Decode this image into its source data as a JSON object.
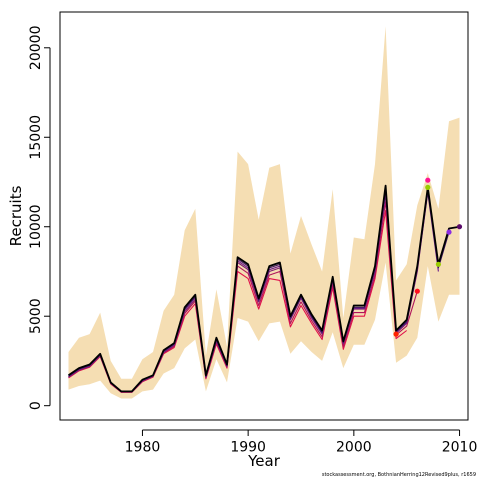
{
  "chart_data": {
    "type": "line",
    "xlabel": "Year",
    "ylabel": "Recruits",
    "xlim": [
      1972.2,
      2010.8
    ],
    "ylim": [
      -800,
      22000
    ],
    "xticks": [
      1980,
      1990,
      2000,
      2010
    ],
    "yticks": [
      0,
      5000,
      10000,
      15000,
      20000
    ],
    "grid": false,
    "footnote": "stockassessment.org, BothnianHerring12Revised9plus, r1659",
    "band": {
      "color": "#f5deb3",
      "x": [
        1973,
        1974,
        1975,
        1976,
        1977,
        1978,
        1979,
        1980,
        1981,
        1982,
        1983,
        1984,
        1985,
        1986,
        1987,
        1988,
        1989,
        1990,
        1991,
        1992,
        1993,
        1994,
        1995,
        1996,
        1997,
        1998,
        1999,
        2000,
        2001,
        2002,
        2003,
        2004,
        2005,
        2006,
        2007,
        2008,
        2009,
        2010
      ],
      "upper": [
        3000,
        3800,
        4000,
        5200,
        2500,
        1500,
        1500,
        2600,
        3000,
        5300,
        6200,
        9800,
        11000,
        2800,
        6500,
        3300,
        14200,
        13500,
        10400,
        13300,
        13500,
        8500,
        10600,
        9000,
        7500,
        12100,
        4900,
        9400,
        9300,
        13500,
        21200,
        7000,
        7900,
        11200,
        13000,
        11000,
        15900,
        16100
      ],
      "lower": [
        900,
        1100,
        1200,
        1400,
        700,
        400,
        400,
        800,
        900,
        1800,
        2100,
        3200,
        3700,
        800,
        2600,
        1300,
        4900,
        4700,
        3600,
        4600,
        4700,
        2900,
        3600,
        3000,
        2500,
        4100,
        2100,
        3400,
        3400,
        4800,
        8000,
        2400,
        2800,
        3800,
        7800,
        4700,
        6200,
        6200
      ]
    },
    "series": [
      {
        "color": "#000000",
        "x": [
          1973,
          1974,
          1975,
          1976,
          1977,
          1978,
          1979,
          1980,
          1981,
          1982,
          1983,
          1984,
          1985,
          1986,
          1987,
          1988,
          1989,
          1990,
          1991,
          1992,
          1993,
          1994,
          1995,
          1996,
          1997,
          1998,
          1999,
          2000,
          2001,
          2002,
          2003,
          2004,
          2005,
          2006,
          2007,
          2008,
          2009,
          2010
        ],
        "y": [
          1700,
          2100,
          2300,
          2900,
          1300,
          800,
          800,
          1450,
          1700,
          3100,
          3500,
          5500,
          6200,
          1700,
          3800,
          2300,
          8300,
          7900,
          6000,
          7800,
          8000,
          5000,
          6200,
          5100,
          4200,
          7200,
          3600,
          5600,
          5600,
          7800,
          12300,
          4200,
          4800,
          7800,
          12200,
          7900,
          9900,
          10000
        ]
      },
      {
        "color": "#3d1660",
        "x": [
          1973,
          1974,
          1975,
          1976,
          1977,
          1978,
          1979,
          1980,
          1981,
          1982,
          1983,
          1984,
          1985,
          1986,
          1987,
          1988,
          1989,
          1990,
          1991,
          1992,
          1993,
          1994,
          1995,
          1996,
          1997,
          1998,
          1999,
          2000,
          2001,
          2002,
          2003,
          2004,
          2005,
          2006,
          2007,
          2008,
          2009
        ],
        "y": [
          1650,
          2050,
          2250,
          2850,
          1280,
          790,
          790,
          1420,
          1680,
          3050,
          3450,
          5400,
          6100,
          1650,
          3700,
          2250,
          8200,
          7800,
          5900,
          7700,
          7900,
          4900,
          6100,
          5000,
          4100,
          7100,
          3550,
          5500,
          5500,
          7700,
          12100,
          4150,
          4700,
          7700,
          12000,
          7700,
          9700
        ]
      },
      {
        "color": "#6b1a8c",
        "x": [
          1973,
          1974,
          1975,
          1976,
          1977,
          1978,
          1979,
          1980,
          1981,
          1982,
          1983,
          1984,
          1985,
          1986,
          1987,
          1988,
          1989,
          1990,
          1991,
          1992,
          1993,
          1994,
          1995,
          1996,
          1997,
          1998,
          1999,
          2000,
          2001,
          2002,
          2003,
          2004,
          2005,
          2006,
          2007,
          2008
        ],
        "y": [
          1630,
          2030,
          2230,
          2830,
          1270,
          780,
          780,
          1400,
          1660,
          3020,
          3420,
          5350,
          6050,
          1620,
          3660,
          2220,
          8100,
          7700,
          5850,
          7600,
          7800,
          4850,
          6050,
          4950,
          4050,
          7050,
          3500,
          5450,
          5450,
          7600,
          11900,
          4100,
          4650,
          7600,
          11900,
          7500
        ]
      },
      {
        "color": "#7a1f6e",
        "x": [
          1973,
          1974,
          1975,
          1976,
          1977,
          1978,
          1979,
          1980,
          1981,
          1982,
          1983,
          1984,
          1985,
          1986,
          1987,
          1988,
          1989,
          1990,
          1991,
          1992,
          1993,
          1994,
          1995,
          1996,
          1997,
          1998,
          1999,
          2000,
          2001,
          2002,
          2003,
          2004,
          2005,
          2006,
          2007
        ],
        "y": [
          1600,
          2000,
          2200,
          2800,
          1260,
          770,
          770,
          1380,
          1640,
          2980,
          3380,
          5250,
          5950,
          1600,
          3600,
          2200,
          8000,
          7600,
          5800,
          7500,
          7700,
          4800,
          6000,
          4900,
          4000,
          7000,
          3450,
          5400,
          5400,
          7500,
          11800,
          4050,
          4600,
          7500,
          12000
        ]
      },
      {
        "color": "#b0145a",
        "x": [
          1973,
          1974,
          1975,
          1976,
          1977,
          1978,
          1979,
          1980,
          1981,
          1982,
          1983,
          1984,
          1985,
          1986,
          1987,
          1988,
          1989,
          1990,
          1991,
          1992,
          1993,
          1994,
          1995,
          1996,
          1997,
          1998,
          1999,
          2000,
          2001,
          2002,
          2003,
          2004,
          2005,
          2006
        ],
        "y": [
          1580,
          1980,
          2180,
          2780,
          1240,
          760,
          760,
          1360,
          1620,
          2950,
          3320,
          5150,
          5850,
          1560,
          3550,
          2150,
          7800,
          7400,
          5600,
          7300,
          7500,
          4600,
          5800,
          4750,
          3850,
          6800,
          3300,
          5200,
          5200,
          7300,
          11400,
          3950,
          4450,
          6400
        ]
      },
      {
        "color": "#e0114a",
        "x": [
          1973,
          1974,
          1975,
          1976,
          1977,
          1978,
          1979,
          1980,
          1981,
          1982,
          1983,
          1984,
          1985,
          1986,
          1987,
          1988,
          1989,
          1990,
          1991,
          1992,
          1993,
          1994,
          1995,
          1996,
          1997,
          1998,
          1999,
          2000,
          2001,
          2002,
          2003,
          2004,
          2005
        ],
        "y": [
          1550,
          1950,
          2150,
          2750,
          1220,
          750,
          750,
          1340,
          1600,
          2900,
          3250,
          5000,
          5700,
          1500,
          3450,
          2100,
          7500,
          7100,
          5400,
          7100,
          7000,
          4400,
          5600,
          4600,
          3700,
          6600,
          3150,
          5000,
          5000,
          7100,
          10900,
          3750,
          4200
        ]
      }
    ],
    "end_points": [
      {
        "x": 2004,
        "y": 4000,
        "color": "#ff2200"
      },
      {
        "x": 2006,
        "y": 6400,
        "color": "#ff1020"
      },
      {
        "x": 2007,
        "y": 12600,
        "color": "#ff1493"
      },
      {
        "x": 2007,
        "y": 12200,
        "color": "#99cc00"
      },
      {
        "x": 2008,
        "y": 7900,
        "color": "#99cc00"
      },
      {
        "x": 2009,
        "y": 9700,
        "color": "#8a2be2"
      },
      {
        "x": 2010,
        "y": 10000,
        "color": "#5a0a6a"
      }
    ]
  }
}
